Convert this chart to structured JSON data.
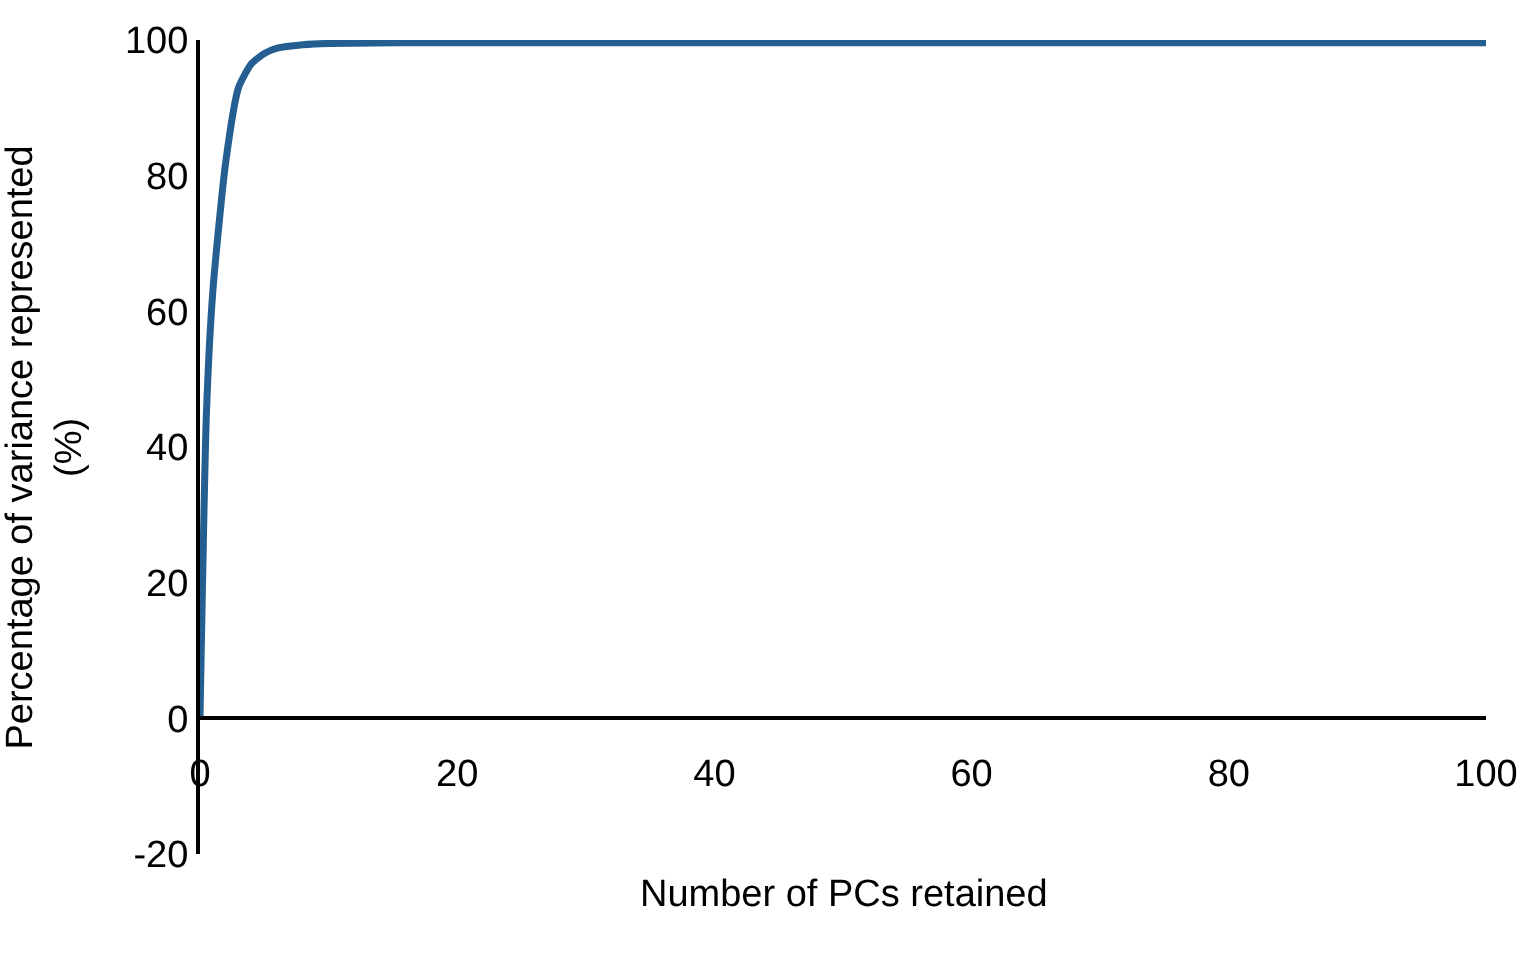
{
  "chart_data": {
    "type": "line",
    "xlabel": "Number of PCs retained",
    "ylabel": "Percentage of variance represented (%)",
    "x": [
      0,
      0.5,
      1,
      2,
      3,
      4,
      5,
      6,
      8,
      10,
      20,
      50,
      100
    ],
    "series": [
      {
        "color": "#255e91",
        "values": [
          0,
          45,
          63,
          82,
          93,
          96.5,
          98,
          98.8,
          99.3,
          99.5,
          99.6,
          99.6,
          99.6
        ]
      }
    ],
    "xlim": [
      0,
      100
    ],
    "xticks": [
      0,
      20,
      40,
      60,
      80,
      100
    ],
    "ylim": [
      -20,
      100
    ],
    "yticks": [
      -20,
      0,
      20,
      40,
      60,
      80,
      100
    ],
    "grid": false,
    "marker": "none",
    "line_style": "solid"
  }
}
